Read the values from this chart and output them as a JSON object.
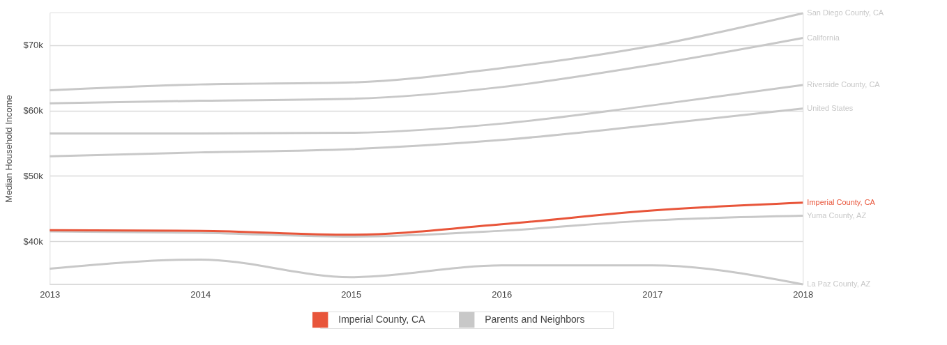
{
  "chart_data": {
    "type": "line",
    "ylabel": "Median Household Income",
    "x": [
      2013,
      2014,
      2015,
      2016,
      2017,
      2018
    ],
    "xlim": [
      2013,
      2018
    ],
    "xticks": [
      2013,
      2014,
      2015,
      2016,
      2017,
      2018
    ],
    "ylim": [
      33400,
      75000
    ],
    "yticks": [
      {
        "value": 40000,
        "label": "$40k"
      },
      {
        "value": 50000,
        "label": "$50k"
      },
      {
        "value": 60000,
        "label": "$60k"
      },
      {
        "value": 70000,
        "label": "$70k"
      }
    ],
    "grid": "y",
    "legend": "bottom",
    "marker": "none",
    "line_style": "solid",
    "annotations": [
      "Parents and Neighbors"
    ],
    "series": [
      {
        "name": "San Diego County, CA",
        "color": "#c8c8c8",
        "values": [
          63100,
          64000,
          64300,
          66500,
          69900,
          74900
        ]
      },
      {
        "name": "California",
        "color": "#c8c8c8",
        "values": [
          61100,
          61500,
          61800,
          63600,
          67000,
          71100
        ]
      },
      {
        "name": "Riverside County, CA",
        "color": "#c8c8c8",
        "values": [
          56500,
          56500,
          56600,
          58000,
          60800,
          63900
        ]
      },
      {
        "name": "United States",
        "color": "#c8c8c8",
        "values": [
          53000,
          53600,
          54100,
          55500,
          57800,
          60300
        ]
      },
      {
        "name": "Yuma County, AZ",
        "color": "#c8c8c8",
        "values": [
          41500,
          41300,
          40700,
          41600,
          43200,
          43900
        ]
      },
      {
        "name": "La Paz County, AZ",
        "color": "#c8c8c8",
        "values": [
          35800,
          37200,
          34500,
          36300,
          36300,
          33400
        ]
      },
      {
        "name": "Imperial County, CA",
        "color": "#e8553a",
        "values": [
          41700,
          41600,
          41000,
          42600,
          44700,
          45900
        ]
      }
    ]
  }
}
